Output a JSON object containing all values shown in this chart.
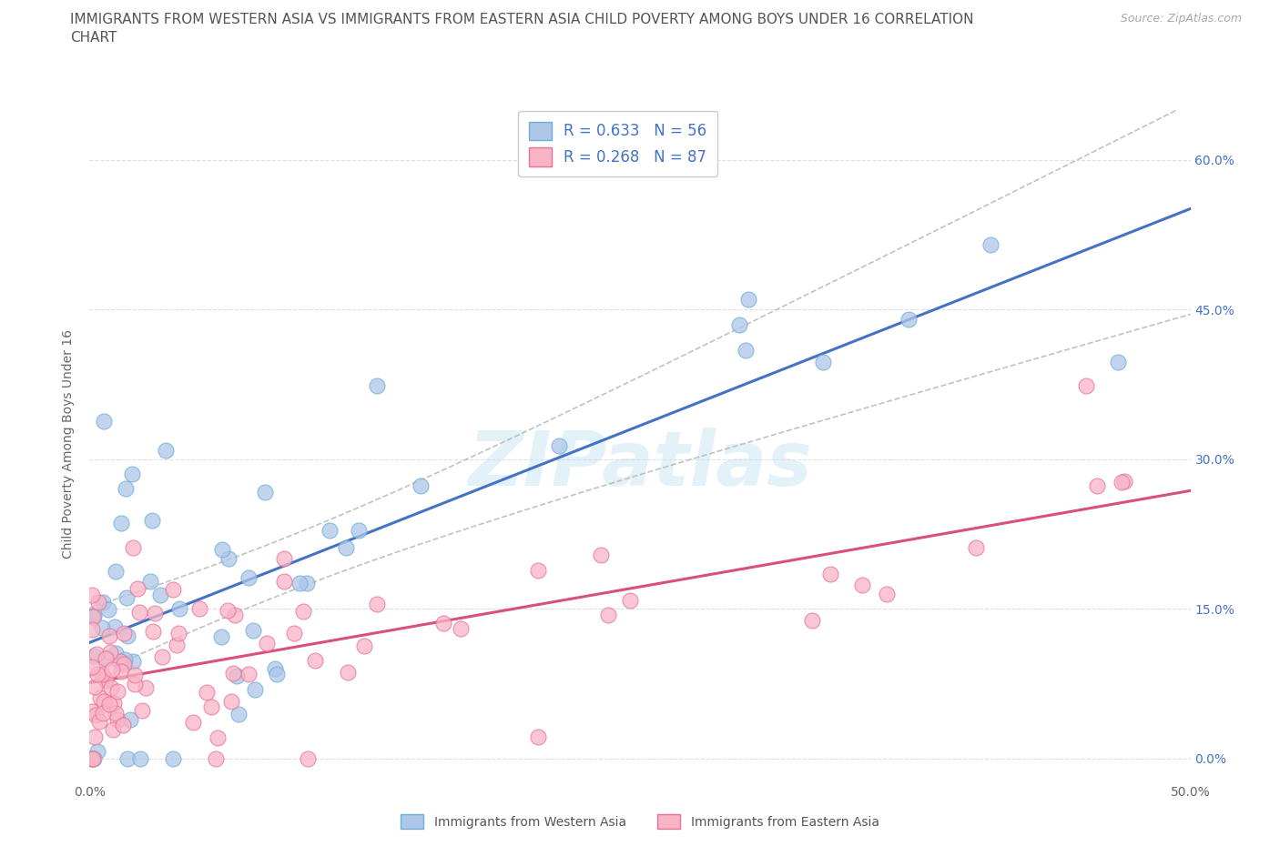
{
  "title": "IMMIGRANTS FROM WESTERN ASIA VS IMMIGRANTS FROM EASTERN ASIA CHILD POVERTY AMONG BOYS UNDER 16 CORRELATION\nCHART",
  "source_text": "Source: ZipAtlas.com",
  "ylabel": "Child Poverty Among Boys Under 16",
  "xlim": [
    0.0,
    0.5
  ],
  "ylim": [
    -0.02,
    0.65
  ],
  "x_ticks": [
    0.0,
    0.1,
    0.2,
    0.3,
    0.4,
    0.5
  ],
  "x_tick_labels": [
    "0.0%",
    "",
    "",
    "",
    "",
    "50.0%"
  ],
  "y_ticks": [
    0.0,
    0.15,
    0.3,
    0.45,
    0.6
  ],
  "y_tick_labels_right": [
    "0.0%",
    "15.0%",
    "30.0%",
    "45.0%",
    "60.0%"
  ],
  "bg_color": "#ffffff",
  "grid_color": "#d8d8d8",
  "watermark": "ZIPatlas",
  "series1_color": "#aec6e8",
  "series1_edge": "#6baed6",
  "series2_color": "#f9b4c5",
  "series2_edge": "#e8709a",
  "series1_label": "Immigrants from Western Asia",
  "series2_label": "Immigrants from Eastern Asia",
  "series1_R": 0.633,
  "series1_N": 56,
  "series2_R": 0.268,
  "series2_N": 87,
  "line1_color": "#4472c4",
  "line2_color": "#d94f7e",
  "conf_color": "#bbbbbb"
}
